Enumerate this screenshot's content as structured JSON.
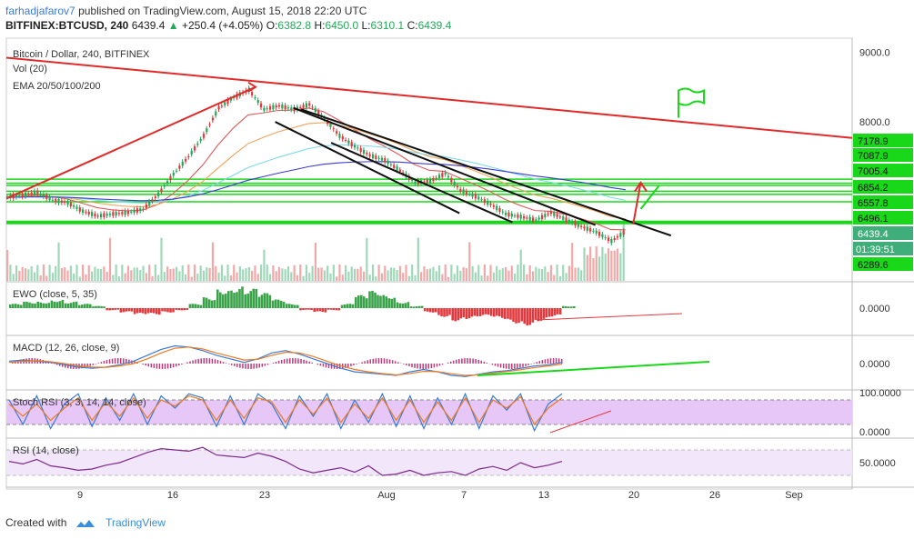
{
  "header": {
    "user": "farhadjafarov7",
    "published": "published on TradingView.com, August 15, 2018 22:20 UTC",
    "symbol": "BITFINEX:BTCUSD, 240",
    "last": "6439.4",
    "change_arrow": "▲",
    "change": "+250.4 (+4.05%)",
    "o_label": "O:",
    "o": "6382.8",
    "h_label": "H:",
    "h": "6450.0",
    "l_label": "L:",
    "l": "6310.1",
    "c_label": "C:",
    "c": "6439.4"
  },
  "footer": {
    "created_with": "Created with",
    "brand": "TradingView"
  },
  "colors": {
    "up": "#26a65b",
    "down": "#e0393e",
    "accent_green": "#19d819",
    "volume_up": "#9fd8b8",
    "volume_down": "#f2a8a8",
    "ema20": "#e05a5a",
    "ema50": "#f0a35a",
    "ema100": "#7fd9e8",
    "ema200": "#3b3bd0",
    "stoch_bg": "#e6c7f7",
    "rsi_bg": "#f1e6fa"
  },
  "chart_data": [
    {
      "type": "candlestick",
      "title": "Bitcoin / Dollar, 240, BITFINEX",
      "indicators_legend": [
        "Vol (20)",
        "EMA 20/50/100/200"
      ],
      "x_tick_labels": [
        "9",
        "16",
        "23",
        "Aug",
        "7",
        "13",
        "20",
        "26",
        "Sep"
      ],
      "y_tick_labels": [
        "9000.0",
        "8000.0"
      ],
      "ylim": [
        5720,
        9200
      ],
      "price_labels": [
        {
          "value": 7178.9,
          "text": "7178.9"
        },
        {
          "value": 7087.9,
          "text": "7087.9"
        },
        {
          "value": 7005.4,
          "text": "7005.4"
        },
        {
          "value": 6854.2,
          "text": "6854.2"
        },
        {
          "value": 6557.8,
          "text": "6557.8"
        },
        {
          "value": 6496.1,
          "text": "6496.1"
        },
        {
          "value": 6439.4,
          "text": "6439.4"
        },
        {
          "value": 6289.6,
          "text": "6289.6"
        }
      ],
      "countdown": "01:39:51",
      "horizontal_levels": [
        7178.9,
        7120,
        7087.9,
        7005.4,
        6960,
        6854.2,
        6557.8
      ],
      "close_path": [
        [
          0,
          6920
        ],
        [
          10,
          6950
        ],
        [
          20,
          6990
        ],
        [
          30,
          6880
        ],
        [
          40,
          6840
        ],
        [
          50,
          6720
        ],
        [
          60,
          6650
        ],
        [
          70,
          6680
        ],
        [
          80,
          6700
        ],
        [
          90,
          6750
        ],
        [
          100,
          6960
        ],
        [
          110,
          7250
        ],
        [
          120,
          7500
        ],
        [
          130,
          7800
        ],
        [
          140,
          8200
        ],
        [
          150,
          8350
        ],
        [
          160,
          8460
        ],
        [
          170,
          8180
        ],
        [
          180,
          8230
        ],
        [
          190,
          8180
        ],
        [
          200,
          8250
        ],
        [
          210,
          8050
        ],
        [
          220,
          7800
        ],
        [
          230,
          7650
        ],
        [
          240,
          7520
        ],
        [
          250,
          7450
        ],
        [
          260,
          7300
        ],
        [
          270,
          7130
        ],
        [
          280,
          7150
        ],
        [
          290,
          7260
        ],
        [
          300,
          7020
        ],
        [
          310,
          6930
        ],
        [
          320,
          6820
        ],
        [
          330,
          6680
        ],
        [
          340,
          6640
        ],
        [
          350,
          6590
        ],
        [
          360,
          6700
        ],
        [
          370,
          6600
        ],
        [
          380,
          6500
        ],
        [
          390,
          6420
        ],
        [
          400,
          6290
        ],
        [
          410,
          6439.4
        ]
      ],
      "x_domain": [
        0,
        560
      ],
      "trendlines": [
        {
          "from": [
            0,
            8920
          ],
          "to": [
            560,
            7770
          ],
          "color": "#e02b2b"
        },
        {
          "from": [
            0,
            6900
          ],
          "to": [
            165,
            8500
          ],
          "color": "#e02b2b"
        },
        {
          "from": [
            190,
            8200
          ],
          "to": [
            390,
            6520
          ],
          "color": "#111111"
        },
        {
          "from": [
            195,
            8180
          ],
          "to": [
            440,
            6370
          ],
          "color": "#111111"
        },
        {
          "from": [
            178,
            8000
          ],
          "to": [
            300,
            6690
          ],
          "color": "#111111"
        },
        {
          "from": [
            215,
            7700
          ],
          "to": [
            335,
            6560
          ],
          "color": "#111111"
        }
      ],
      "flag_annotation": {
        "at": [
          445,
          8450
        ]
      }
    },
    {
      "type": "bar",
      "title": "EWO (close, 5, 35)",
      "y_tick_labels": [
        "0.0000"
      ],
      "ylim": [
        -1,
        1
      ],
      "values": [
        0.2,
        0.3,
        0.3,
        0.4,
        0.3,
        0.2,
        0.1,
        -0.1,
        -0.2,
        -0.3,
        -0.3,
        -0.2,
        -0.1,
        0.2,
        0.5,
        0.9,
        1.0,
        0.9,
        0.7,
        0.4,
        0.2,
        -0.1,
        -0.2,
        -0.1,
        0.2,
        0.6,
        0.8,
        0.6,
        0.3,
        0.1,
        -0.2,
        -0.4,
        -0.6,
        -0.5,
        -0.4,
        -0.5,
        -0.7,
        -0.8,
        -0.6,
        -0.4,
        0.1
      ]
    },
    {
      "type": "line",
      "title": "MACD (12, 26, close, 9)",
      "y_tick_labels": [
        "0.0000"
      ],
      "ylim": [
        -1,
        1
      ],
      "series": [
        {
          "name": "MACD",
          "values": [
            0.1,
            0.15,
            0.1,
            0.05,
            -0.05,
            -0.15,
            -0.2,
            -0.15,
            -0.05,
            0.1,
            0.35,
            0.6,
            0.75,
            0.7,
            0.55,
            0.35,
            0.2,
            0.05,
            0.2,
            0.45,
            0.55,
            0.4,
            0.2,
            0.0,
            -0.2,
            -0.35,
            -0.4,
            -0.45,
            -0.5,
            -0.35,
            -0.25,
            -0.35,
            -0.5,
            -0.55,
            -0.45,
            -0.35,
            -0.3,
            -0.2,
            -0.1,
            -0.05,
            0.05
          ]
        },
        {
          "name": "Signal",
          "values": [
            0.05,
            0.1,
            0.12,
            0.08,
            0.0,
            -0.1,
            -0.15,
            -0.16,
            -0.1,
            0.0,
            0.2,
            0.45,
            0.65,
            0.7,
            0.62,
            0.45,
            0.3,
            0.15,
            0.18,
            0.35,
            0.48,
            0.45,
            0.3,
            0.1,
            -0.1,
            -0.25,
            -0.35,
            -0.42,
            -0.48,
            -0.42,
            -0.33,
            -0.34,
            -0.43,
            -0.5,
            -0.47,
            -0.4,
            -0.34,
            -0.26,
            -0.17,
            -0.1,
            -0.02
          ]
        }
      ]
    },
    {
      "type": "line",
      "title": "Stoch RSI (3, 3, 14, 14, close)",
      "y_tick_labels": [
        "100.0000",
        "0.0000"
      ],
      "ylim": [
        0,
        100
      ],
      "series": [
        {
          "name": "K",
          "values": [
            80,
            20,
            90,
            10,
            70,
            95,
            15,
            85,
            30,
            95,
            20,
            90,
            60,
            95,
            85,
            15,
            90,
            20,
            95,
            70,
            10,
            90,
            40,
            95,
            10,
            80,
            25,
            95,
            15,
            90,
            10,
            85,
            20,
            95,
            10,
            90,
            55,
            95,
            5,
            70,
            95
          ]
        },
        {
          "name": "D",
          "values": [
            70,
            40,
            70,
            30,
            60,
            85,
            30,
            75,
            40,
            85,
            35,
            80,
            65,
            90,
            80,
            30,
            80,
            35,
            85,
            75,
            25,
            80,
            45,
            85,
            25,
            70,
            35,
            85,
            30,
            80,
            25,
            75,
            30,
            85,
            25,
            80,
            60,
            88,
            20,
            60,
            85
          ]
        }
      ]
    },
    {
      "type": "line",
      "title": "RSI (14, close)",
      "y_tick_labels": [
        "50.0000"
      ],
      "ylim": [
        20,
        80
      ],
      "series": [
        {
          "name": "RSI",
          "values": [
            52,
            48,
            55,
            45,
            42,
            38,
            40,
            46,
            50,
            58,
            66,
            72,
            70,
            68,
            74,
            62,
            60,
            58,
            65,
            60,
            52,
            40,
            34,
            38,
            42,
            35,
            45,
            30,
            32,
            38,
            30,
            34,
            36,
            30,
            40,
            44,
            38,
            50,
            42,
            46,
            52
          ]
        }
      ]
    }
  ]
}
